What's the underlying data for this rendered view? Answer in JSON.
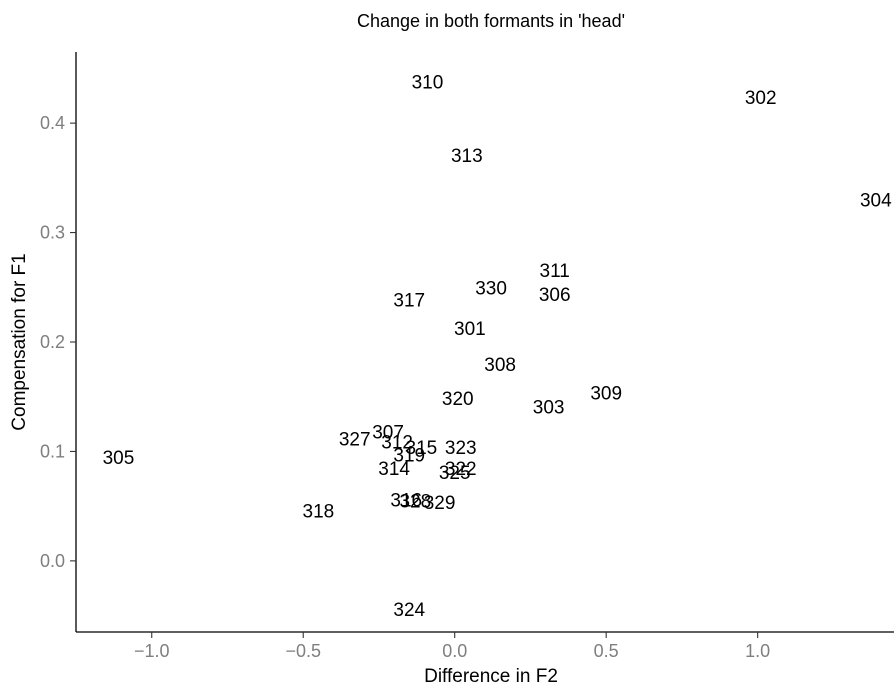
{
  "chart_data": {
    "type": "scatter",
    "title": "Change in both formants in 'head'",
    "xlabel": "Difference in F2",
    "ylabel": "Compensation for F1",
    "xlim": [
      -1.25,
      1.45
    ],
    "ylim": [
      -0.065,
      0.465
    ],
    "xticks": [
      {
        "value": -1.0,
        "label": "−1.0"
      },
      {
        "value": -0.5,
        "label": "−0.5"
      },
      {
        "value": 0.0,
        "label": "0.0"
      },
      {
        "value": 0.5,
        "label": "0.5"
      },
      {
        "value": 1.0,
        "label": "1.0"
      }
    ],
    "yticks": [
      {
        "value": 0.0,
        "label": "0.0"
      },
      {
        "value": 0.1,
        "label": "0.1"
      },
      {
        "value": 0.2,
        "label": "0.2"
      },
      {
        "value": 0.3,
        "label": "0.3"
      },
      {
        "value": 0.4,
        "label": "0.4"
      }
    ],
    "grid": false,
    "legend": "none",
    "marker": "text-label",
    "points": [
      {
        "label": "310",
        "x": -0.09,
        "y": 0.438
      },
      {
        "label": "302",
        "x": 1.01,
        "y": 0.424
      },
      {
        "label": "313",
        "x": 0.04,
        "y": 0.371
      },
      {
        "label": "304",
        "x": 1.39,
        "y": 0.33
      },
      {
        "label": "311",
        "x": 0.33,
        "y": 0.266
      },
      {
        "label": "330",
        "x": 0.12,
        "y": 0.25
      },
      {
        "label": "306",
        "x": 0.33,
        "y": 0.244
      },
      {
        "label": "317",
        "x": -0.15,
        "y": 0.239
      },
      {
        "label": "301",
        "x": 0.05,
        "y": 0.213
      },
      {
        "label": "308",
        "x": 0.15,
        "y": 0.18
      },
      {
        "label": "309",
        "x": 0.5,
        "y": 0.154
      },
      {
        "label": "320",
        "x": 0.01,
        "y": 0.149
      },
      {
        "label": "303",
        "x": 0.31,
        "y": 0.141
      },
      {
        "label": "307",
        "x": -0.22,
        "y": 0.118
      },
      {
        "label": "327",
        "x": -0.33,
        "y": 0.112
      },
      {
        "label": "312",
        "x": -0.19,
        "y": 0.109
      },
      {
        "label": "315",
        "x": -0.11,
        "y": 0.104
      },
      {
        "label": "323",
        "x": 0.02,
        "y": 0.104
      },
      {
        "label": "319",
        "x": -0.15,
        "y": 0.097
      },
      {
        "label": "305",
        "x": -1.11,
        "y": 0.095
      },
      {
        "label": "314",
        "x": -0.2,
        "y": 0.085
      },
      {
        "label": "322",
        "x": 0.02,
        "y": 0.085
      },
      {
        "label": "325",
        "x": 0.0,
        "y": 0.081
      },
      {
        "label": "316",
        "x": -0.16,
        "y": 0.056
      },
      {
        "label": "328",
        "x": -0.13,
        "y": 0.055
      },
      {
        "label": "329",
        "x": -0.05,
        "y": 0.054
      },
      {
        "label": "318",
        "x": -0.45,
        "y": 0.046
      },
      {
        "label": "324",
        "x": -0.15,
        "y": -0.044
      }
    ]
  }
}
